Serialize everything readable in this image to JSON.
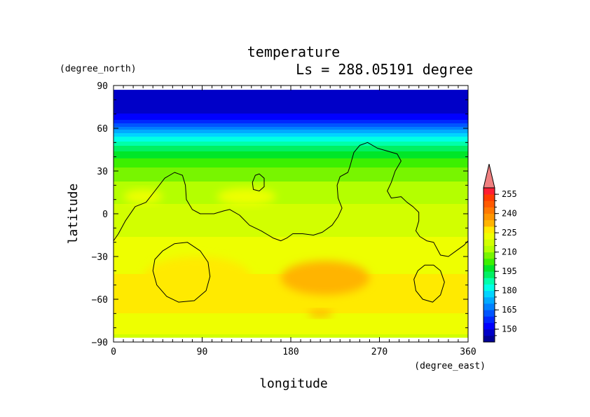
{
  "chart_data": {
    "type": "heatmap",
    "title": "temperature",
    "subtitle": "Ls = 288.05191 degree",
    "xlabel": "longitude",
    "ylabel": "latitude",
    "x_units": "(degree_east)",
    "y_units": "(degree_north)",
    "xlim": [
      0,
      360
    ],
    "ylim": [
      -90,
      90
    ],
    "x_ticks": [
      0,
      90,
      180,
      270,
      360
    ],
    "y_ticks": [
      90,
      60,
      30,
      0,
      -30,
      -60,
      -90
    ],
    "data_lat_range": [
      -87,
      87
    ],
    "colorbar": {
      "levels": [
        140,
        145,
        150,
        155,
        160,
        165,
        170,
        175,
        180,
        185,
        190,
        195,
        200,
        205,
        210,
        215,
        220,
        225,
        230,
        235,
        240,
        245,
        250,
        255,
        260
      ],
      "tick_labels": [
        150,
        165,
        180,
        195,
        210,
        225,
        240,
        255
      ],
      "colors": [
        "#000096",
        "#0000c8",
        "#0000ff",
        "#0028ff",
        "#0055ff",
        "#0080ff",
        "#00aaff",
        "#00d4ff",
        "#00ffe6",
        "#00ffaa",
        "#00f064",
        "#00e628",
        "#3cf000",
        "#78f500",
        "#b4ff00",
        "#d2ff00",
        "#eeff00",
        "#ffea00",
        "#ffb400",
        "#ff9600",
        "#ff7800",
        "#ff5a00",
        "#ff3c00",
        "#ff1e32"
      ],
      "extend_max_color": "#f08080"
    },
    "zonal_profile": [
      {
        "lat": 87,
        "value": 147
      },
      {
        "lat": 80,
        "value": 147
      },
      {
        "lat": 72,
        "value": 148
      },
      {
        "lat": 66,
        "value": 155
      },
      {
        "lat": 62,
        "value": 163
      },
      {
        "lat": 58,
        "value": 172
      },
      {
        "lat": 54,
        "value": 180
      },
      {
        "lat": 49,
        "value": 188
      },
      {
        "lat": 44,
        "value": 195
      },
      {
        "lat": 38,
        "value": 201
      },
      {
        "lat": 30,
        "value": 207
      },
      {
        "lat": 20,
        "value": 211
      },
      {
        "lat": 10,
        "value": 214
      },
      {
        "lat": 0,
        "value": 217
      },
      {
        "lat": -10,
        "value": 219
      },
      {
        "lat": -22,
        "value": 221
      },
      {
        "lat": -35,
        "value": 224
      },
      {
        "lat": -50,
        "value": 226
      },
      {
        "lat": -65,
        "value": 226
      },
      {
        "lat": -75,
        "value": 224
      },
      {
        "lat": -82,
        "value": 221
      },
      {
        "lat": -87,
        "value": 219
      }
    ],
    "warm_anomalies": [
      {
        "lon": 215,
        "lat": -45,
        "width_lon": 90,
        "height_lat": 24,
        "value": 234
      },
      {
        "lon": 210,
        "lat": -70,
        "width_lon": 25,
        "height_lat": 5,
        "value": 232
      },
      {
        "lon": 135,
        "lat": 12,
        "width_lon": 60,
        "height_lat": 12,
        "value": 222
      },
      {
        "lon": 30,
        "lat": 12,
        "width_lon": 40,
        "height_lat": 10,
        "value": 221
      },
      {
        "lon": 85,
        "lat": -45,
        "width_lon": 110,
        "height_lat": 30,
        "value": 225
      }
    ],
    "topography_contours": [
      {
        "name": "continent-outline",
        "closed": false,
        "points": [
          [
            0,
            -19
          ],
          [
            5,
            -14
          ],
          [
            12,
            -5
          ],
          [
            22,
            5
          ],
          [
            33,
            8
          ],
          [
            42,
            16
          ],
          [
            52,
            25
          ],
          [
            62,
            29
          ],
          [
            70,
            27
          ],
          [
            73,
            20
          ],
          [
            74,
            10
          ],
          [
            80,
            3
          ],
          [
            88,
            0
          ],
          [
            102,
            0
          ],
          [
            112,
            2
          ],
          [
            118,
            3
          ],
          [
            128,
            -1
          ],
          [
            138,
            -8
          ],
          [
            150,
            -12
          ],
          [
            162,
            -17
          ],
          [
            170,
            -19
          ],
          [
            176,
            -17
          ],
          [
            182,
            -14
          ],
          [
            192,
            -14
          ],
          [
            203,
            -15
          ],
          [
            212,
            -13
          ],
          [
            222,
            -8
          ],
          [
            228,
            -2
          ],
          [
            232,
            4
          ],
          [
            228,
            11
          ],
          [
            227,
            20
          ],
          [
            230,
            26
          ],
          [
            238,
            29
          ],
          [
            240,
            33
          ],
          [
            244,
            43
          ],
          [
            250,
            48
          ],
          [
            258,
            50
          ],
          [
            268,
            46
          ],
          [
            278,
            44
          ],
          [
            288,
            42
          ],
          [
            292,
            37
          ],
          [
            286,
            30
          ],
          [
            282,
            22
          ],
          [
            278,
            16
          ],
          [
            282,
            11
          ],
          [
            292,
            12
          ],
          [
            298,
            8
          ],
          [
            304,
            5
          ],
          [
            310,
            1
          ],
          [
            310,
            -5
          ],
          [
            307,
            -12
          ],
          [
            311,
            -16
          ],
          [
            318,
            -19
          ],
          [
            325,
            -20
          ],
          [
            332,
            -29
          ],
          [
            340,
            -30
          ],
          [
            350,
            -25
          ],
          [
            356,
            -22
          ],
          [
            360,
            -19
          ]
        ]
      },
      {
        "name": "crater-west",
        "closed": true,
        "points": [
          [
            75,
            -20
          ],
          [
            88,
            -26
          ],
          [
            96,
            -34
          ],
          [
            98,
            -44
          ],
          [
            94,
            -54
          ],
          [
            82,
            -61
          ],
          [
            66,
            -62
          ],
          [
            54,
            -58
          ],
          [
            44,
            -50
          ],
          [
            40,
            -40
          ],
          [
            42,
            -32
          ],
          [
            50,
            -26
          ],
          [
            62,
            -21
          ]
        ]
      },
      {
        "name": "crater-east",
        "closed": true,
        "points": [
          [
            325,
            -36
          ],
          [
            332,
            -40
          ],
          [
            336,
            -48
          ],
          [
            332,
            -57
          ],
          [
            324,
            -62
          ],
          [
            314,
            -60
          ],
          [
            307,
            -54
          ],
          [
            305,
            -46
          ],
          [
            309,
            -40
          ],
          [
            316,
            -36
          ]
        ]
      },
      {
        "name": "small-hill",
        "closed": true,
        "points": [
          [
            148,
            28
          ],
          [
            153,
            25
          ],
          [
            153,
            19
          ],
          [
            148,
            16
          ],
          [
            142,
            17
          ],
          [
            141,
            22
          ],
          [
            144,
            27
          ]
        ]
      }
    ]
  }
}
